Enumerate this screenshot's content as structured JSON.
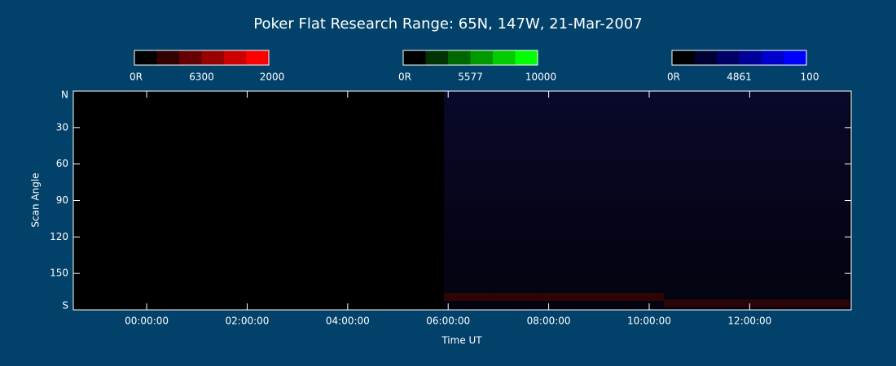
{
  "chart_data": {
    "type": "keogram",
    "title": "Poker Flat Research Range: 65N, 147W, 21-Mar-2007",
    "x_label": "Time UT",
    "y_label": "Scan Angle",
    "xlim": [
      -1.46,
      14.02
    ],
    "xticks": [
      {
        "value": 0,
        "label": "00:00:00"
      },
      {
        "value": 2,
        "label": "02:00:00"
      },
      {
        "value": 4,
        "label": "04:00:00"
      },
      {
        "value": 6,
        "label": "06:00:00"
      },
      {
        "value": 8,
        "label": "08:00:00"
      },
      {
        "value": 10,
        "label": "10:00:00"
      },
      {
        "value": 12,
        "label": "12:00:00"
      }
    ],
    "ylim": [
      180,
      0
    ],
    "yticks": [
      {
        "value": 0,
        "label": "N"
      },
      30,
      60,
      90,
      120,
      150,
      {
        "value": 180,
        "label": "S"
      }
    ],
    "colorbars": [
      {
        "min_label": "0R",
        "wavelength": "6300",
        "max": 2000,
        "colors": [
          "#000000",
          "#330000",
          "#660000",
          "#990000",
          "#cc0000",
          "#ff0000"
        ]
      },
      {
        "min_label": "0R",
        "wavelength": "5577",
        "max": 10000,
        "colors": [
          "#000000",
          "#003300",
          "#006600",
          "#009900",
          "#00cc00",
          "#00ff00"
        ]
      },
      {
        "min_label": "0R",
        "wavelength": "4861",
        "max": 100,
        "colors": [
          "#000000",
          "#000033",
          "#000066",
          "#000099",
          "#0000cc",
          "#0000ff"
        ]
      }
    ]
  }
}
